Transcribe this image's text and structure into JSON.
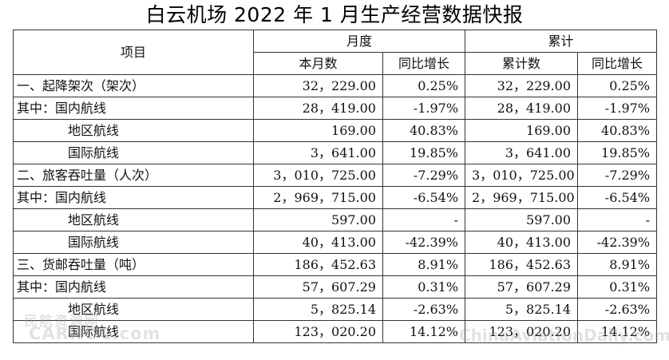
{
  "title": "白云机场 2022 年 1 月生产经营数据快报",
  "header": {
    "item": "项目",
    "month_group": "月度",
    "cumulative_group": "累计",
    "month_value": "本月数",
    "month_yoy": "同比增长",
    "cum_value": "累计数",
    "cum_yoy": "同比增长"
  },
  "rows": [
    {
      "label": "一、起降架次（架次）",
      "style": "main",
      "month": "32，229.00",
      "month_yoy": "0.25%",
      "cum": "32，229.00",
      "cum_yoy": "0.25%"
    },
    {
      "label": "其中：国内航线",
      "style": "main",
      "month": "28，419.00",
      "month_yoy": "-1.97%",
      "cum": "28，419.00",
      "cum_yoy": "-1.97%"
    },
    {
      "label": "地区航线",
      "style": "indent",
      "month": "169.00",
      "month_yoy": "40.83%",
      "cum": "169.00",
      "cum_yoy": "40.83%"
    },
    {
      "label": "国际航线",
      "style": "indent",
      "month": "3，641.00",
      "month_yoy": "19.85%",
      "cum": "3，641.00",
      "cum_yoy": "19.85%"
    },
    {
      "label": "二、旅客吞吐量（人次）",
      "style": "main",
      "month": "3，010，725.00",
      "month_yoy": "-7.29%",
      "cum": "3，010，725.00",
      "cum_yoy": "-7.29%"
    },
    {
      "label": "其中：国内航线",
      "style": "main",
      "month": "2，969，715.00",
      "month_yoy": "-6.54%",
      "cum": "2，969，715.00",
      "cum_yoy": "-6.54%"
    },
    {
      "label": "地区航线",
      "style": "indent",
      "month": "597.00",
      "month_yoy": "-",
      "cum": "597.00",
      "cum_yoy": "-"
    },
    {
      "label": "国际航线",
      "style": "indent",
      "month": "40，413.00",
      "month_yoy": "-42.39%",
      "cum": "40，413.00",
      "cum_yoy": "-42.39%"
    },
    {
      "label": "三、货邮吞吐量（吨）",
      "style": "main",
      "month": "186，452.63",
      "month_yoy": "8.91%",
      "cum": "186，452.63",
      "cum_yoy": "8.91%"
    },
    {
      "label": "其中：国内航线",
      "style": "main",
      "month": "57，607.29",
      "month_yoy": "0.31%",
      "cum": "57，607.29",
      "cum_yoy": "0.31%"
    },
    {
      "label": "地区航线",
      "style": "indent",
      "month": "5，825.14",
      "month_yoy": "-2.63%",
      "cum": "5，825.14",
      "cum_yoy": "-2.63%"
    },
    {
      "label": "国际航线",
      "style": "indent",
      "month": "123，020.20",
      "month_yoy": "14.12%",
      "cum": "123，020.20",
      "cum_yoy": "14.12%"
    }
  ],
  "watermarks": {
    "left_cn": "民航资源网",
    "left_site": "CARNOC.com",
    "right_site": "ChinaAviationDaily.com"
  }
}
